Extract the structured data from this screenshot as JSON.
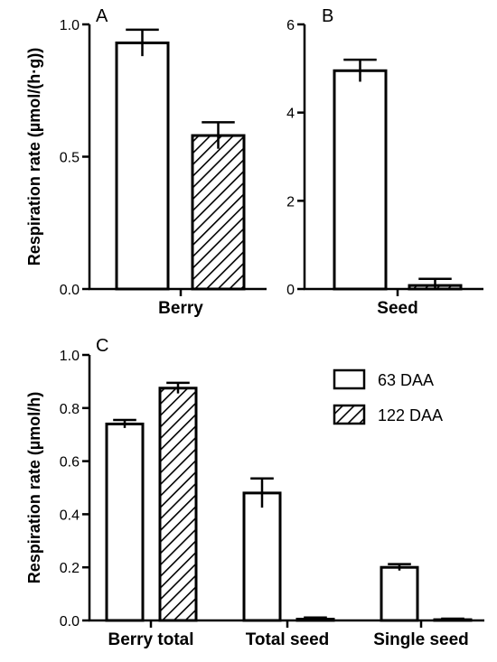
{
  "legend": [
    {
      "label": "63 DAA",
      "pattern": "open"
    },
    {
      "label": "122 DAA",
      "pattern": "hatched"
    }
  ],
  "chart_data": [
    {
      "panel": "A",
      "type": "bar",
      "ylabel": "Respiration rate (µmol/(h·g))",
      "ylim": [
        0,
        1.0
      ],
      "yticks": [
        "0.0",
        "0.5",
        "1.0"
      ],
      "categories": [
        "Berry"
      ],
      "series": [
        {
          "name": "63 DAA",
          "values": [
            0.93
          ],
          "errors": [
            0.05
          ]
        },
        {
          "name": "122 DAA",
          "values": [
            0.58
          ],
          "errors": [
            0.05
          ]
        }
      ]
    },
    {
      "panel": "B",
      "type": "bar",
      "ylabel": "",
      "ylim": [
        0,
        6
      ],
      "yticks": [
        "0",
        "2",
        "4",
        "6"
      ],
      "categories": [
        "Seed"
      ],
      "series": [
        {
          "name": "63 DAA",
          "values": [
            4.95
          ],
          "errors": [
            0.25
          ]
        },
        {
          "name": "122 DAA",
          "values": [
            0.08
          ],
          "errors": [
            0.15
          ]
        }
      ]
    },
    {
      "panel": "C",
      "type": "bar",
      "ylabel": "Respiration rate (µmol/h)",
      "ylim": [
        0,
        1.0
      ],
      "yticks": [
        "0.0",
        "0.2",
        "0.4",
        "0.6",
        "0.8",
        "1.0"
      ],
      "categories": [
        "Berry total",
        "Total seed",
        "Single seed"
      ],
      "series": [
        {
          "name": "63 DAA",
          "values": [
            0.74,
            0.48,
            0.2
          ],
          "errors": [
            0.015,
            0.055,
            0.012
          ]
        },
        {
          "name": "122 DAA",
          "values": [
            0.875,
            0.005,
            0.003
          ],
          "errors": [
            0.02,
            0.006,
            0.004
          ]
        }
      ]
    }
  ]
}
